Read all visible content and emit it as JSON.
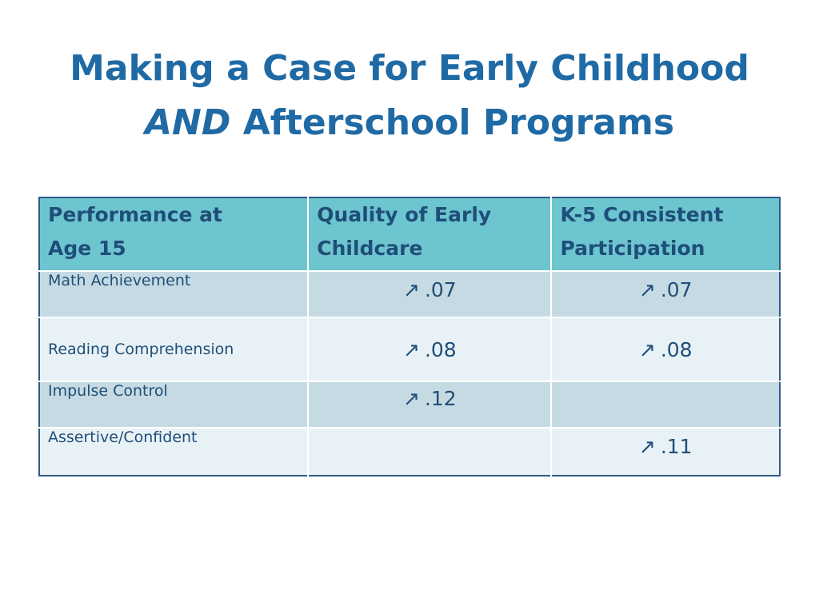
{
  "title": {
    "line1": "Making a Case for Early Childhood",
    "line2_emphasis": "AND",
    "line2_rest": " Afterschool Programs"
  },
  "table": {
    "headers": [
      {
        "line1": "Performance at",
        "line2": "Age 15"
      },
      {
        "line1": "Quality of Early",
        "line2": "Childcare"
      },
      {
        "line1": "K-5  Consistent",
        "line2": "Participation"
      }
    ],
    "rows": [
      {
        "label": "Math Achievement",
        "early_childcare": ".07",
        "k5_participation": ".07"
      },
      {
        "label": "Reading Comprehension",
        "early_childcare": ".08",
        "k5_participation": ".08"
      },
      {
        "label": "Impulse Control",
        "early_childcare": ".12",
        "k5_participation": ""
      },
      {
        "label": "Assertive/Confident",
        "early_childcare": "",
        "k5_participation": ".11"
      }
    ],
    "arrow_symbol": "↗",
    "arrow_icon": "arrow-up-right-icon"
  },
  "colors": {
    "title": "#1f6aa5",
    "header_bg": "#6dc5cf",
    "row_dark": "#c6dae3",
    "row_light": "#e8f2f6",
    "text": "#1f4e79",
    "border": "#2e5c87"
  }
}
